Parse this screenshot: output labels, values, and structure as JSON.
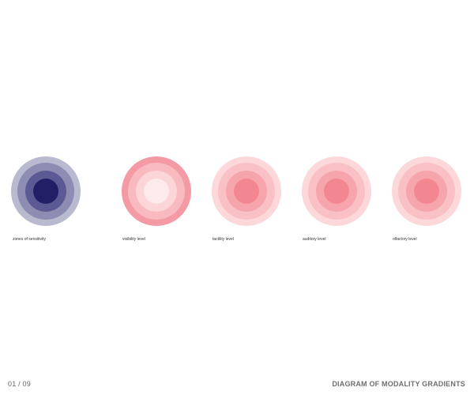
{
  "diagram": {
    "circles": [
      {
        "caption": "zones of sensitivity",
        "ring_colors": [
          "#b9b9d0",
          "#8d8cb3",
          "#5c5a94",
          "#231f66"
        ],
        "ring_labels": [
          "",
          "",
          "",
          ""
        ]
      },
      {
        "caption": "visibility level",
        "ring_colors": [
          "#f49aa4",
          "#f8b9bf",
          "#fbd5d8",
          "#fdeaeb"
        ],
        "ring_labels": [
          "",
          "",
          "",
          ""
        ]
      },
      {
        "caption": "tactility level",
        "ring_colors": [
          "#fcd8db",
          "#f9c0c5",
          "#f6a5ad",
          "#f38791"
        ],
        "ring_labels": [
          "",
          "",
          "",
          ""
        ]
      },
      {
        "caption": "auditory level",
        "ring_colors": [
          "#fcd8db",
          "#f9c0c5",
          "#f6a5ad",
          "#f38791"
        ],
        "ring_labels": [
          "",
          "",
          "",
          ""
        ]
      },
      {
        "caption": "olfactory level",
        "ring_colors": [
          "#fcd8db",
          "#f9c0c5",
          "#f6a5ad",
          "#f38791"
        ],
        "ring_labels": [
          "",
          "",
          "",
          ""
        ]
      }
    ]
  },
  "footer": {
    "page": "01 / 09",
    "title": "DIAGRAM OF MODALITY GRADIENTS"
  }
}
